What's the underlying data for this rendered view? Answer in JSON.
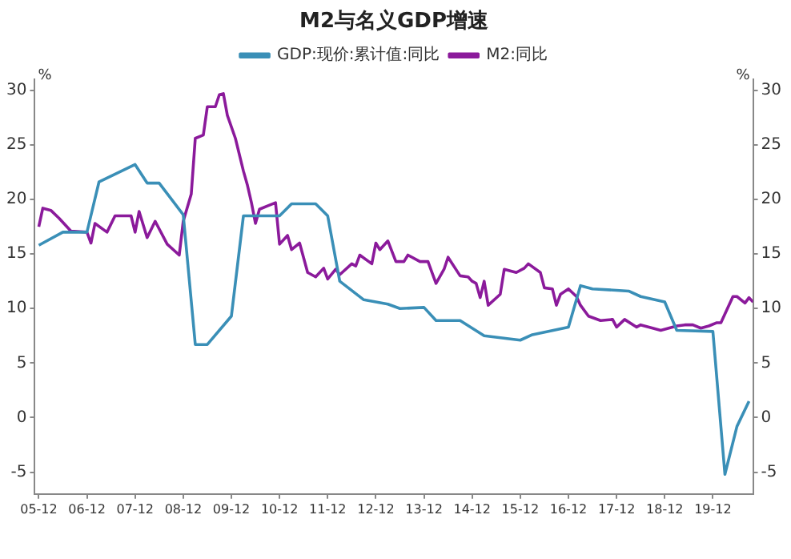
{
  "chart_data": {
    "type": "line",
    "title": "M2与名义GDP增速",
    "ylabel": "%",
    "y2label": "%",
    "xlim": [
      "2005-11",
      "2020-10"
    ],
    "xticks": [
      {
        "value": "2005-12",
        "label": "05-12"
      },
      {
        "value": "2006-12",
        "label": "06-12"
      },
      {
        "value": "2007-12",
        "label": "07-12"
      },
      {
        "value": "2008-12",
        "label": "08-12"
      },
      {
        "value": "2009-12",
        "label": "09-12"
      },
      {
        "value": "2010-12",
        "label": "10-12"
      },
      {
        "value": "2011-12",
        "label": "11-12"
      },
      {
        "value": "2012-12",
        "label": "12-12"
      },
      {
        "value": "2013-12",
        "label": "13-12"
      },
      {
        "value": "2014-12",
        "label": "14-12"
      },
      {
        "value": "2015-12",
        "label": "15-12"
      },
      {
        "value": "2016-12",
        "label": "16-12"
      },
      {
        "value": "2017-12",
        "label": "17-12"
      },
      {
        "value": "2018-12",
        "label": "18-12"
      },
      {
        "value": "2019-12",
        "label": "19-12"
      }
    ],
    "ylim": [
      -7,
      31
    ],
    "yticks": [
      -5,
      0,
      5,
      10,
      15,
      20,
      25,
      30
    ],
    "y2lim": [
      -7,
      31
    ],
    "y2ticks": [
      -5,
      0,
      5,
      10,
      15,
      20,
      25,
      30
    ],
    "grid": false,
    "legend": "top",
    "marker": "none",
    "line_style": "solid",
    "series": [
      {
        "name": "GDP:现价:累计值:同比",
        "color": "#3a8fb7",
        "x": [
          "2005-12",
          "2006-06",
          "2006-12",
          "2007-03",
          "2007-12",
          "2008-03",
          "2008-06",
          "2008-12",
          "2009-03",
          "2009-06",
          "2009-12",
          "2010-03",
          "2010-12",
          "2011-03",
          "2011-09",
          "2011-12",
          "2012-03",
          "2012-09",
          "2013-03",
          "2013-06",
          "2013-12",
          "2014-03",
          "2014-09",
          "2015-03",
          "2015-12",
          "2016-03",
          "2016-12",
          "2017-03",
          "2017-06",
          "2018-03",
          "2018-06",
          "2018-12",
          "2019-03",
          "2019-12",
          "2020-03",
          "2020-06",
          "2020-09"
        ],
        "values": [
          15.8,
          17.0,
          17.0,
          21.6,
          23.2,
          21.5,
          21.5,
          18.6,
          6.7,
          6.7,
          9.3,
          18.5,
          18.5,
          19.6,
          19.6,
          18.5,
          12.5,
          10.8,
          10.4,
          10.0,
          10.1,
          8.9,
          8.9,
          7.5,
          7.1,
          7.6,
          8.3,
          12.1,
          11.8,
          11.6,
          11.1,
          10.6,
          8.0,
          7.9,
          -5.2,
          -0.8,
          1.5
        ]
      },
      {
        "name": "M2:同比",
        "color": "#8b1a9b",
        "x": [
          "2005-12",
          "2006-01",
          "2006-03",
          "2006-05",
          "2006-08",
          "2006-12",
          "2007-01",
          "2007-02",
          "2007-05",
          "2007-07",
          "2007-11",
          "2007-12",
          "2008-01",
          "2008-03",
          "2008-05",
          "2008-08",
          "2008-11",
          "2008-12",
          "2009-02",
          "2009-03",
          "2009-05",
          "2009-06",
          "2009-08",
          "2009-09",
          "2009-10",
          "2009-11",
          "2010-01",
          "2010-03",
          "2010-04",
          "2010-05",
          "2010-06",
          "2010-07",
          "2010-09",
          "2010-11",
          "2010-12",
          "2011-02",
          "2011-03",
          "2011-05",
          "2011-07",
          "2011-09",
          "2011-11",
          "2011-12",
          "2012-02",
          "2012-03",
          "2012-06",
          "2012-07",
          "2012-08",
          "2012-11",
          "2012-12",
          "2013-01",
          "2013-03",
          "2013-05",
          "2013-07",
          "2013-08",
          "2013-11",
          "2014-01",
          "2014-02",
          "2014-03",
          "2014-05",
          "2014-06",
          "2014-09",
          "2014-11",
          "2014-12",
          "2015-01",
          "2015-02",
          "2015-03",
          "2015-04",
          "2015-07",
          "2015-08",
          "2015-11",
          "2016-01",
          "2016-02",
          "2016-05",
          "2016-06",
          "2016-08",
          "2016-09",
          "2016-10",
          "2016-12",
          "2017-02",
          "2017-03",
          "2017-05",
          "2017-08",
          "2017-11",
          "2017-12",
          "2018-02",
          "2018-05",
          "2018-06",
          "2018-09",
          "2018-11",
          "2019-03",
          "2019-05",
          "2019-07",
          "2019-09",
          "2019-11",
          "2020-01",
          "2020-02",
          "2020-05",
          "2020-06",
          "2020-08",
          "2020-09",
          "2020-10"
        ],
        "values": [
          17.5,
          19.2,
          19.0,
          18.3,
          17.1,
          17.0,
          16.0,
          17.8,
          17.0,
          18.5,
          18.5,
          17.0,
          18.9,
          16.5,
          18.0,
          15.9,
          14.9,
          18.0,
          20.5,
          25.6,
          25.9,
          28.5,
          28.5,
          29.6,
          29.7,
          27.7,
          25.6,
          22.6,
          21.3,
          19.7,
          17.8,
          19.1,
          19.4,
          19.7,
          15.9,
          16.7,
          15.4,
          16.0,
          13.3,
          12.9,
          13.7,
          12.7,
          13.6,
          13.1,
          14.1,
          13.9,
          14.9,
          14.1,
          16.0,
          15.4,
          16.2,
          14.3,
          14.3,
          14.9,
          14.3,
          14.3,
          13.3,
          12.3,
          13.6,
          14.7,
          13.0,
          12.9,
          12.5,
          12.3,
          11.0,
          12.5,
          10.3,
          11.3,
          13.6,
          13.3,
          13.7,
          14.1,
          13.3,
          11.9,
          11.8,
          10.3,
          11.3,
          11.8,
          11.1,
          10.3,
          9.3,
          8.9,
          9.0,
          8.3,
          9.0,
          8.3,
          8.5,
          8.2,
          8.0,
          8.4,
          8.5,
          8.5,
          8.2,
          8.4,
          8.7,
          8.7,
          11.1,
          11.1,
          10.5,
          11.0,
          10.6
        ]
      }
    ]
  }
}
